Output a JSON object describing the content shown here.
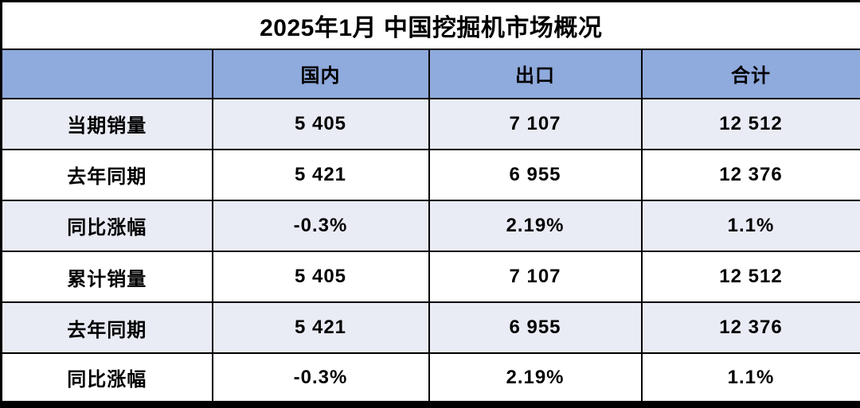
{
  "chart_data": {
    "type": "table",
    "title": "2025年1月 中国挖掘机市场概况",
    "columns": [
      "",
      "国内",
      "出口",
      "合计"
    ],
    "rows": [
      {
        "label": "当期销量",
        "values": [
          "5 405",
          "7 107",
          "12 512"
        ]
      },
      {
        "label": "去年同期",
        "values": [
          "5 421",
          "6 955",
          "12 376"
        ]
      },
      {
        "label": "同比涨幅",
        "values": [
          "-0.3%",
          "2.19%",
          "1.1%"
        ]
      },
      {
        "label": "累计销量",
        "values": [
          "5 405",
          "7 107",
          "12 512"
        ]
      },
      {
        "label": "去年同期",
        "values": [
          "5 421",
          "6 955",
          "12 376"
        ]
      },
      {
        "label": "同比涨幅",
        "values": [
          "-0.3%",
          "2.19%",
          "1.1%"
        ]
      }
    ],
    "colors": {
      "header_bg": "#8FAADC",
      "stripe_bg": "#E9EBF5",
      "row_bg": "#FFFFFF",
      "border": "#000000",
      "text": "#000000"
    }
  }
}
